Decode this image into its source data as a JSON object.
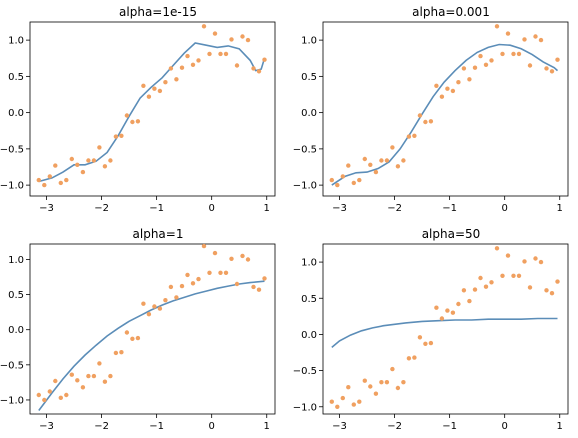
{
  "colors": {
    "points": "#f0a060",
    "fit_line": "#5b8db8"
  },
  "chart_data": [
    {
      "type": "scatter+line",
      "title": "alpha=1e-15",
      "xlim": [
        -3.3,
        1.15
      ],
      "ylim": [
        -1.15,
        1.25
      ],
      "xticks": [
        -3,
        -2,
        -1,
        0,
        1
      ],
      "xtick_labels": [
        "−3",
        "−2",
        "−1",
        "0",
        "1"
      ],
      "yticks": [
        -1.0,
        -0.5,
        0.0,
        0.5,
        1.0
      ],
      "ytick_labels": [
        "−1.0",
        "−0.5",
        "0.0",
        "0.5",
        "1.0"
      ],
      "points_x": [
        -3.14,
        -3.04,
        -2.94,
        -2.84,
        -2.74,
        -2.64,
        -2.54,
        -2.44,
        -2.34,
        -2.24,
        -2.14,
        -2.04,
        -1.94,
        -1.84,
        -1.74,
        -1.64,
        -1.54,
        -1.44,
        -1.34,
        -1.24,
        -1.14,
        -1.04,
        -0.94,
        -0.84,
        -0.74,
        -0.64,
        -0.54,
        -0.44,
        -0.34,
        -0.24,
        -0.14,
        -0.04,
        0.06,
        0.16,
        0.26,
        0.36,
        0.46,
        0.56,
        0.66,
        0.76,
        0.86,
        0.96
      ],
      "points_y": [
        -0.93,
        -1.0,
        -0.88,
        -0.73,
        -0.97,
        -0.93,
        -0.64,
        -0.72,
        -0.82,
        -0.66,
        -0.66,
        -0.48,
        -0.74,
        -0.66,
        -0.33,
        -0.32,
        -0.04,
        -0.13,
        -0.12,
        0.37,
        0.22,
        0.33,
        0.3,
        0.42,
        0.61,
        0.46,
        0.62,
        0.78,
        0.66,
        0.72,
        1.19,
        0.81,
        1.09,
        0.81,
        0.81,
        1.01,
        0.65,
        1.05,
        1.0,
        0.61,
        0.57,
        0.73
      ],
      "fit_x": [
        -3.14,
        -2.9,
        -2.7,
        -2.5,
        -2.3,
        -2.1,
        -1.9,
        -1.7,
        -1.5,
        -1.3,
        -1.1,
        -0.9,
        -0.7,
        -0.5,
        -0.3,
        -0.1,
        0.1,
        0.3,
        0.5,
        0.7,
        0.8,
        0.9,
        0.96
      ],
      "fit_y": [
        -0.95,
        -0.9,
        -0.82,
        -0.72,
        -0.72,
        -0.67,
        -0.55,
        -0.32,
        -0.05,
        0.2,
        0.35,
        0.48,
        0.65,
        0.82,
        0.96,
        0.93,
        0.9,
        0.92,
        0.88,
        0.72,
        0.58,
        0.6,
        0.75
      ]
    },
    {
      "type": "scatter+line",
      "title": "alpha=0.001",
      "xlim": [
        -3.3,
        1.15
      ],
      "ylim": [
        -1.15,
        1.25
      ],
      "xticks": [
        -3,
        -2,
        -1,
        0,
        1
      ],
      "xtick_labels": [
        "−3",
        "−2",
        "−1",
        "0",
        "1"
      ],
      "yticks": [
        -1.0,
        -0.5,
        0.0,
        0.5,
        1.0
      ],
      "ytick_labels": [
        "−1.0",
        "−0.5",
        "0.0",
        "0.5",
        "1.0"
      ],
      "points_x": [
        -3.14,
        -3.04,
        -2.94,
        -2.84,
        -2.74,
        -2.64,
        -2.54,
        -2.44,
        -2.34,
        -2.24,
        -2.14,
        -2.04,
        -1.94,
        -1.84,
        -1.74,
        -1.64,
        -1.54,
        -1.44,
        -1.34,
        -1.24,
        -1.14,
        -1.04,
        -0.94,
        -0.84,
        -0.74,
        -0.64,
        -0.54,
        -0.44,
        -0.34,
        -0.24,
        -0.14,
        -0.04,
        0.06,
        0.16,
        0.26,
        0.36,
        0.46,
        0.56,
        0.66,
        0.76,
        0.86,
        0.96
      ],
      "points_y": [
        -0.93,
        -1.0,
        -0.88,
        -0.73,
        -0.97,
        -0.93,
        -0.64,
        -0.72,
        -0.82,
        -0.66,
        -0.66,
        -0.48,
        -0.74,
        -0.66,
        -0.33,
        -0.32,
        -0.04,
        -0.13,
        -0.12,
        0.37,
        0.22,
        0.33,
        0.3,
        0.42,
        0.61,
        0.46,
        0.62,
        0.78,
        0.66,
        0.72,
        1.19,
        0.81,
        1.09,
        0.81,
        0.81,
        1.01,
        0.65,
        1.05,
        1.0,
        0.61,
        0.57,
        0.73
      ],
      "fit_x": [
        -3.14,
        -2.9,
        -2.7,
        -2.5,
        -2.3,
        -2.1,
        -1.9,
        -1.7,
        -1.5,
        -1.3,
        -1.1,
        -0.9,
        -0.7,
        -0.5,
        -0.3,
        -0.1,
        0.1,
        0.3,
        0.5,
        0.7,
        0.9,
        0.96
      ],
      "fit_y": [
        -1.0,
        -0.88,
        -0.83,
        -0.82,
        -0.77,
        -0.68,
        -0.5,
        -0.27,
        -0.02,
        0.22,
        0.42,
        0.58,
        0.72,
        0.83,
        0.9,
        0.94,
        0.93,
        0.88,
        0.8,
        0.7,
        0.62,
        0.58
      ]
    },
    {
      "type": "scatter+line",
      "title": "alpha=1",
      "xlim": [
        -3.3,
        1.15
      ],
      "ylim": [
        -1.2,
        1.22
      ],
      "xticks": [
        -3,
        -2,
        -1,
        0,
        1
      ],
      "xtick_labels": [
        "−3",
        "−2",
        "−1",
        "0",
        "1"
      ],
      "yticks": [
        -1.0,
        -0.5,
        0.0,
        0.5,
        1.0
      ],
      "ytick_labels": [
        "−1.0",
        "−0.5",
        "0.0",
        "0.5",
        "1.0"
      ],
      "points_x": [
        -3.14,
        -3.04,
        -2.94,
        -2.84,
        -2.74,
        -2.64,
        -2.54,
        -2.44,
        -2.34,
        -2.24,
        -2.14,
        -2.04,
        -1.94,
        -1.84,
        -1.74,
        -1.64,
        -1.54,
        -1.44,
        -1.34,
        -1.24,
        -1.14,
        -1.04,
        -0.94,
        -0.84,
        -0.74,
        -0.64,
        -0.54,
        -0.44,
        -0.34,
        -0.24,
        -0.14,
        -0.04,
        0.06,
        0.16,
        0.26,
        0.36,
        0.46,
        0.56,
        0.66,
        0.76,
        0.86,
        0.96
      ],
      "points_y": [
        -0.93,
        -1.0,
        -0.88,
        -0.73,
        -0.97,
        -0.93,
        -0.64,
        -0.72,
        -0.82,
        -0.66,
        -0.66,
        -0.48,
        -0.74,
        -0.66,
        -0.33,
        -0.32,
        -0.04,
        -0.13,
        -0.12,
        0.37,
        0.22,
        0.33,
        0.3,
        0.42,
        0.61,
        0.46,
        0.62,
        0.78,
        0.66,
        0.72,
        1.19,
        0.81,
        1.09,
        0.81,
        0.81,
        1.01,
        0.65,
        1.05,
        1.0,
        0.61,
        0.57,
        0.73
      ],
      "fit_x": [
        -3.14,
        -2.9,
        -2.7,
        -2.5,
        -2.3,
        -2.1,
        -1.9,
        -1.7,
        -1.5,
        -1.3,
        -1.1,
        -0.9,
        -0.7,
        -0.5,
        -0.3,
        -0.1,
        0.1,
        0.3,
        0.5,
        0.7,
        0.96
      ],
      "fit_y": [
        -1.15,
        -0.9,
        -0.7,
        -0.52,
        -0.36,
        -0.22,
        -0.09,
        0.02,
        0.12,
        0.2,
        0.28,
        0.35,
        0.41,
        0.46,
        0.51,
        0.55,
        0.59,
        0.62,
        0.65,
        0.67,
        0.69
      ]
    },
    {
      "type": "scatter+line",
      "title": "alpha=50",
      "xlim": [
        -3.3,
        1.15
      ],
      "ylim": [
        -1.1,
        1.25
      ],
      "xticks": [
        -3,
        -2,
        -1,
        0,
        1
      ],
      "xtick_labels": [
        "−3",
        "−2",
        "−1",
        "0",
        "1"
      ],
      "yticks": [
        -1.0,
        -0.5,
        0.0,
        0.5,
        1.0
      ],
      "ytick_labels": [
        "−1.0",
        "−0.5",
        "0.0",
        "0.5",
        "1.0"
      ],
      "points_x": [
        -3.14,
        -3.04,
        -2.94,
        -2.84,
        -2.74,
        -2.64,
        -2.54,
        -2.44,
        -2.34,
        -2.24,
        -2.14,
        -2.04,
        -1.94,
        -1.84,
        -1.74,
        -1.64,
        -1.54,
        -1.44,
        -1.34,
        -1.24,
        -1.14,
        -1.04,
        -0.94,
        -0.84,
        -0.74,
        -0.64,
        -0.54,
        -0.44,
        -0.34,
        -0.24,
        -0.14,
        -0.04,
        0.06,
        0.16,
        0.26,
        0.36,
        0.46,
        0.56,
        0.66,
        0.76,
        0.86,
        0.96
      ],
      "points_y": [
        -0.93,
        -1.0,
        -0.88,
        -0.73,
        -0.97,
        -0.93,
        -0.64,
        -0.72,
        -0.82,
        -0.66,
        -0.66,
        -0.48,
        -0.74,
        -0.66,
        -0.33,
        -0.32,
        -0.04,
        -0.13,
        -0.12,
        0.37,
        0.22,
        0.33,
        0.3,
        0.42,
        0.61,
        0.46,
        0.62,
        0.78,
        0.66,
        0.72,
        1.19,
        0.81,
        1.09,
        0.81,
        0.81,
        1.01,
        0.65,
        1.05,
        1.0,
        0.61,
        0.57,
        0.73
      ],
      "fit_x": [
        -3.14,
        -3.0,
        -2.8,
        -2.6,
        -2.4,
        -2.2,
        -2.0,
        -1.8,
        -1.5,
        -1.2,
        -0.9,
        -0.6,
        -0.3,
        0.0,
        0.3,
        0.6,
        0.96
      ],
      "fit_y": [
        -0.18,
        -0.09,
        -0.01,
        0.05,
        0.09,
        0.12,
        0.14,
        0.16,
        0.18,
        0.19,
        0.2,
        0.2,
        0.21,
        0.21,
        0.21,
        0.22,
        0.22
      ]
    }
  ]
}
